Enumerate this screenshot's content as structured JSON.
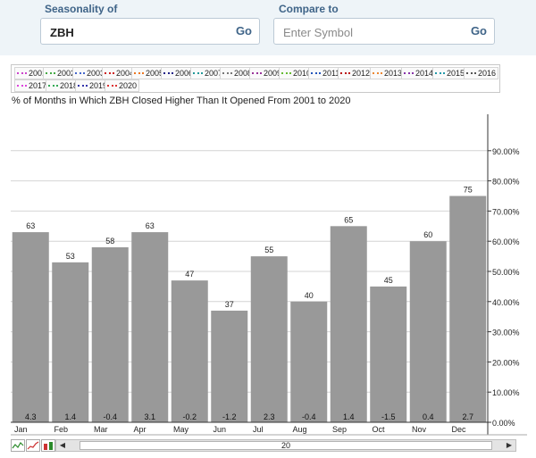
{
  "header": {
    "seasonality_label": "Seasonality of",
    "seasonality_value": "ZBH",
    "compare_label": "Compare to",
    "compare_placeholder": "Enter Symbol",
    "go_label": "Go"
  },
  "legend": {
    "items": [
      {
        "label": "2001",
        "color": "#cc44cc"
      },
      {
        "label": "2002",
        "color": "#44aa44"
      },
      {
        "label": "2003",
        "color": "#4466cc"
      },
      {
        "label": "2004",
        "color": "#cc2222"
      },
      {
        "label": "2005",
        "color": "#ee7722"
      },
      {
        "label": "2006",
        "color": "#222288"
      },
      {
        "label": "2007",
        "color": "#229999"
      },
      {
        "label": "2008",
        "color": "#777777"
      },
      {
        "label": "2009",
        "color": "#993399"
      },
      {
        "label": "2010",
        "color": "#66bb33"
      },
      {
        "label": "2011",
        "color": "#2255bb"
      },
      {
        "label": "2012",
        "color": "#bb1111"
      },
      {
        "label": "2013",
        "color": "#ee8833"
      },
      {
        "label": "2014",
        "color": "#8833aa"
      },
      {
        "label": "2015",
        "color": "#2299aa"
      },
      {
        "label": "2016",
        "color": "#555555"
      },
      {
        "label": "2017",
        "color": "#dd44dd"
      },
      {
        "label": "2018",
        "color": "#33aa55"
      },
      {
        "label": "2019",
        "color": "#3333aa"
      },
      {
        "label": "2020",
        "color": "#dd3333"
      }
    ]
  },
  "chart_title": "% of Months in Which ZBH Closed Higher Than It Opened From 2001 to 2020",
  "chart_data": {
    "type": "bar",
    "categories": [
      "Jan",
      "Feb",
      "Mar",
      "Apr",
      "May",
      "Jun",
      "Jul",
      "Aug",
      "Sep",
      "Oct",
      "Nov",
      "Dec"
    ],
    "values": [
      63,
      53,
      58,
      63,
      47,
      37,
      55,
      40,
      65,
      45,
      60,
      75
    ],
    "avg_change": [
      "4.3",
      "1.4",
      "-0.4",
      "3.1",
      "-0.2",
      "-1.2",
      "2.3",
      "-0.4",
      "1.4",
      "-1.5",
      "0.4",
      "2.7"
    ],
    "ylim": [
      0,
      100
    ],
    "y_ticks": [
      0,
      10,
      20,
      30,
      40,
      50,
      60,
      70,
      80,
      90
    ],
    "y_tick_labels": [
      "0.00%",
      "10.00%",
      "20.00%",
      "30.00%",
      "40.00%",
      "50.00%",
      "60.00%",
      "70.00%",
      "80.00%",
      "90.00%"
    ],
    "grid": true,
    "bar_color": "#999999",
    "title": "% of Months in Which ZBH Closed Higher Than It Opened From 2001 to 2020",
    "xlabel": "",
    "ylabel": ""
  },
  "scroll": {
    "value": "20",
    "left_arrow": "◀",
    "right_arrow": "▶"
  }
}
